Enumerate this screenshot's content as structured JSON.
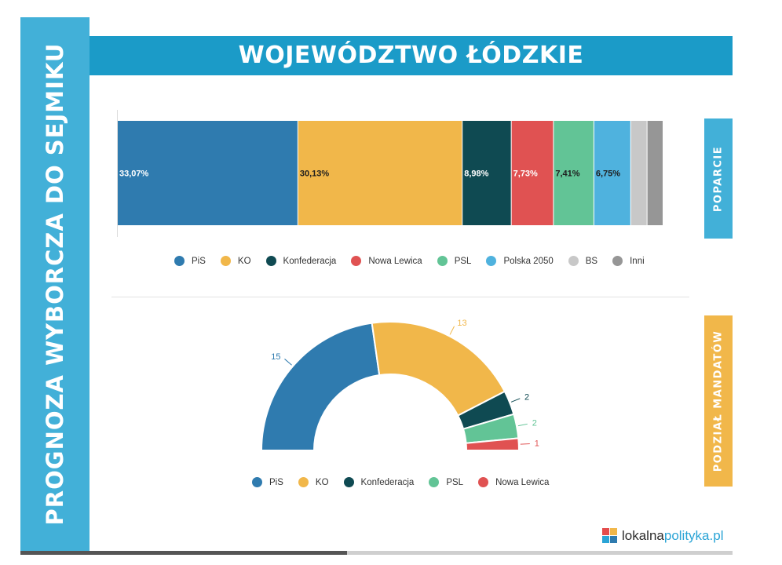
{
  "side_title": "PROGNOZA WYBORCZA DO SEJMIKU",
  "header_title": "WOJEWÓDZTWO ŁÓDZKIE",
  "tab_support": "POPARCIE",
  "tab_seats": "PODZIAŁ MANDATÓW",
  "logo": {
    "part1": "lokalna",
    "part2": "polityka.pl"
  },
  "colors": {
    "PiS": "#2f7baf",
    "KO": "#f1b74a",
    "Konfederacja": "#0f4a52",
    "Nowa Lewica": "#e05252",
    "PSL": "#62c496",
    "Polska 2050": "#4fb2de",
    "BS": "#c8c8c8",
    "Inni": "#969696",
    "accent": "#1b9bc8"
  },
  "chart_data": [
    {
      "type": "bar",
      "orientation": "horizontal-stacked",
      "series": [
        {
          "name": "PiS",
          "value": 33.07,
          "label": "33,07%"
        },
        {
          "name": "KO",
          "value": 30.13,
          "label": "30,13%"
        },
        {
          "name": "Konfederacja",
          "value": 8.98,
          "label": "8,98%"
        },
        {
          "name": "Nowa Lewica",
          "value": 7.73,
          "label": "7,73%"
        },
        {
          "name": "PSL",
          "value": 7.41,
          "label": "7,41%"
        },
        {
          "name": "Polska 2050",
          "value": 6.75,
          "label": "6,75%"
        },
        {
          "name": "BS",
          "value": 3.0,
          "label": ""
        },
        {
          "name": "Inni",
          "value": 2.93,
          "label": ""
        }
      ],
      "legend": [
        "PiS",
        "KO",
        "Konfederacja",
        "Nowa Lewica",
        "PSL",
        "Polska 2050",
        "BS",
        "Inni"
      ],
      "legend_position": "bottom"
    },
    {
      "type": "pie",
      "variant": "semicircle-donut",
      "series": [
        {
          "name": "PiS",
          "value": 15
        },
        {
          "name": "KO",
          "value": 13
        },
        {
          "name": "Konfederacja",
          "value": 2
        },
        {
          "name": "PSL",
          "value": 2
        },
        {
          "name": "Nowa Lewica",
          "value": 1
        }
      ],
      "legend": [
        "PiS",
        "KO",
        "Konfederacja",
        "PSL",
        "Nowa Lewica"
      ],
      "legend_position": "bottom"
    }
  ]
}
